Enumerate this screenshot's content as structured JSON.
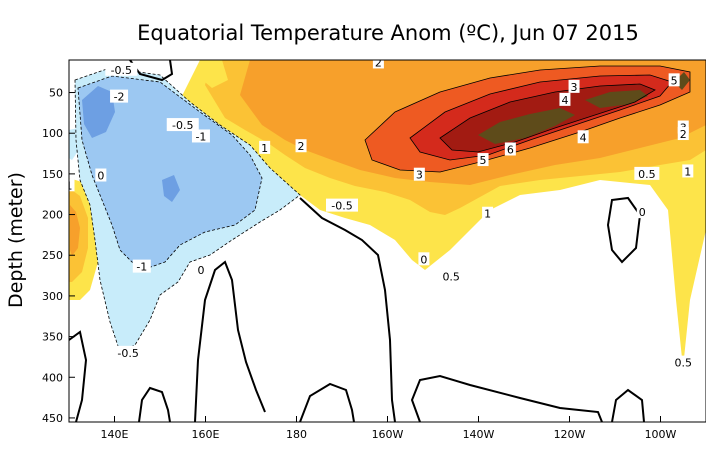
{
  "chart_data": {
    "type": "heatmap",
    "title": "Equatorial Temperature Anom (ºC), Jun 07 2015",
    "xlabel": "",
    "ylabel": "Depth (meter)",
    "x_ticks": [
      {
        "value": 140,
        "label": "140E"
      },
      {
        "value": 160,
        "label": "160E"
      },
      {
        "value": 180,
        "label": "180"
      },
      {
        "value": 200,
        "label": "160W"
      },
      {
        "value": 220,
        "label": "140W"
      },
      {
        "value": 240,
        "label": "120W"
      },
      {
        "value": 260,
        "label": "100W"
      }
    ],
    "y_ticks": [
      {
        "value": 50,
        "label": "50"
      },
      {
        "value": 100,
        "label": "100"
      },
      {
        "value": 150,
        "label": "150"
      },
      {
        "value": 200,
        "label": "200"
      },
      {
        "value": 250,
        "label": "250"
      },
      {
        "value": 300,
        "label": "300"
      },
      {
        "value": 350,
        "label": "350"
      },
      {
        "value": 400,
        "label": "400"
      },
      {
        "value": 450,
        "label": "450"
      }
    ],
    "xlim": [
      130,
      270
    ],
    "ylim": [
      10,
      455
    ],
    "y_inverted": true,
    "contour_levels": [
      -2,
      -1,
      -0.5,
      0.5,
      1,
      2,
      3,
      4,
      5,
      6
    ],
    "level_colors": {
      "-2": "#6d9fe3",
      "-1": "#9cc8f2",
      "-0.5": "#c8ecfa",
      "0.5": "#fde44a",
      "1": "#fbc235",
      "2": "#f7a02b",
      "3": "#ee5a22",
      "4": "#d42a1c",
      "5": "#a21b12",
      "6": "#5e4b1a"
    },
    "contour_labels": [
      {
        "text": "-0.5",
        "x": 141.5,
        "y": 22
      },
      {
        "text": "-2",
        "x": 141,
        "y": 55
      },
      {
        "text": "-0.5",
        "x": 155,
        "y": 90
      },
      {
        "text": "-1",
        "x": 159,
        "y": 104
      },
      {
        "text": "1",
        "x": 173,
        "y": 118
      },
      {
        "text": "2",
        "x": 181,
        "y": 116
      },
      {
        "text": "2",
        "x": 198,
        "y": 13
      },
      {
        "text": "3",
        "x": 241,
        "y": 43
      },
      {
        "text": "4",
        "x": 239,
        "y": 59
      },
      {
        "text": "5",
        "x": 263,
        "y": 35
      },
      {
        "text": "3",
        "x": 265,
        "y": 93
      },
      {
        "text": "2",
        "x": 265,
        "y": 101
      },
      {
        "text": "4",
        "x": 243,
        "y": 105
      },
      {
        "text": "6",
        "x": 227,
        "y": 120
      },
      {
        "text": "5",
        "x": 221,
        "y": 133
      },
      {
        "text": "3",
        "x": 207,
        "y": 151
      },
      {
        "text": "0.5",
        "x": 257,
        "y": 150
      },
      {
        "text": "1",
        "x": 266,
        "y": 147
      },
      {
        "text": "1",
        "x": 222,
        "y": 199
      },
      {
        "text": "-0.5",
        "x": 190,
        "y": 189
      },
      {
        "text": "-1",
        "x": 146,
        "y": 264
      },
      {
        "text": "0.5",
        "x": 214,
        "y": 276
      },
      {
        "text": "0",
        "x": 208,
        "y": 255
      },
      {
        "text": "0",
        "x": 137,
        "y": 152
      },
      {
        "text": "1",
        "x": 130,
        "y": 164
      },
      {
        "text": "0",
        "x": 159,
        "y": 268
      },
      {
        "text": "0",
        "x": 256,
        "y": 197
      },
      {
        "text": "-0.5",
        "x": 143,
        "y": 370
      },
      {
        "text": "0.5",
        "x": 265,
        "y": 382
      }
    ]
  }
}
